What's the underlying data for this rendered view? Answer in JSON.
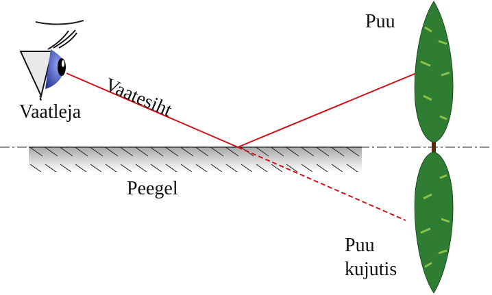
{
  "labels": {
    "observer": "Vaatleja",
    "line_of_sight": "Vaatesiht",
    "mirror": "Peegel",
    "tree": "Puu",
    "tree_image_line1": "Puu",
    "tree_image_line2": "kujutis"
  },
  "colors": {
    "ray": "#d0121b",
    "tree": "#2e7d32",
    "eye_iris": "#4a5fc0"
  }
}
